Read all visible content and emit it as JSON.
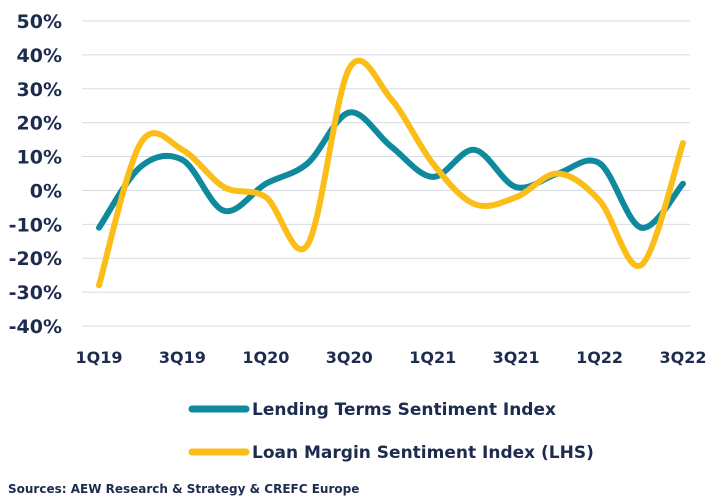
{
  "chart_data": {
    "type": "line",
    "title": "",
    "xlabel": "",
    "ylabel": "",
    "x_tick_labels": [
      "1Q19",
      "3Q19",
      "1Q20",
      "3Q20",
      "1Q21",
      "3Q21",
      "1Q22",
      "3Q22"
    ],
    "y_tick_labels": [
      "50%",
      "40%",
      "30%",
      "20%",
      "10%",
      "0%",
      "-10%",
      "-20%",
      "-30%",
      "-40%"
    ],
    "ylim": [
      -40,
      50
    ],
    "xlim": [
      0,
      14
    ],
    "grid": "horizontal",
    "legend_position": "bottom",
    "series": [
      {
        "name": "Lending Terms Sentiment Index",
        "color": "#0f8a9d",
        "x": [
          0,
          1,
          2,
          3,
          4,
          5,
          6,
          7,
          8,
          9,
          10,
          11,
          12,
          13,
          14
        ],
        "values": [
          -11,
          7,
          9,
          -6,
          2,
          8,
          23,
          13,
          4,
          12,
          1,
          5,
          8,
          -11,
          2
        ]
      },
      {
        "name": "Loan Margin Sentiment Index (LHS)",
        "color": "#fbbd18",
        "x": [
          0,
          1,
          2,
          3,
          4,
          5,
          6,
          7,
          8,
          9,
          10,
          11,
          12,
          13,
          14
        ],
        "values": [
          -28,
          14,
          12,
          1,
          -2,
          -16,
          36,
          27,
          8,
          -4,
          -2,
          5,
          -3,
          -22,
          14
        ]
      }
    ]
  },
  "source": "Sources: AEW Research & Strategy & CREFC Europe"
}
